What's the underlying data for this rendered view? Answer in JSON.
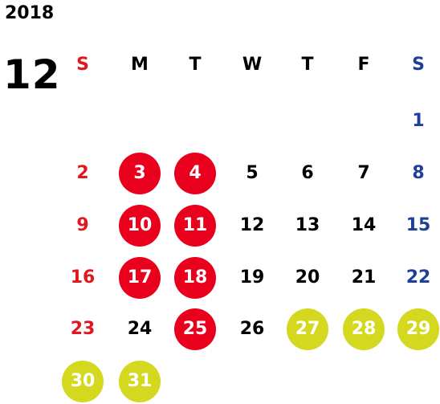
{
  "year": "2018",
  "month": "12",
  "colors": {
    "sunday": "#e3161f",
    "saturday": "#1f3f9a",
    "weekday": "#000000",
    "holiday_circle": "#e8001c",
    "event_circle": "#d4d81f",
    "circle_text": "#ffffff"
  },
  "weekdays": [
    {
      "label": "S",
      "kind": "sunday"
    },
    {
      "label": "M",
      "kind": "weekday"
    },
    {
      "label": "T",
      "kind": "weekday"
    },
    {
      "label": "W",
      "kind": "weekday"
    },
    {
      "label": "T",
      "kind": "weekday"
    },
    {
      "label": "F",
      "kind": "weekday"
    },
    {
      "label": "S",
      "kind": "saturday"
    }
  ],
  "weeks": [
    [
      null,
      null,
      null,
      null,
      null,
      null,
      {
        "day": "1"
      }
    ],
    [
      {
        "day": "2"
      },
      {
        "day": "3",
        "mark": "holiday"
      },
      {
        "day": "4",
        "mark": "holiday"
      },
      {
        "day": "5"
      },
      {
        "day": "6"
      },
      {
        "day": "7"
      },
      {
        "day": "8"
      }
    ],
    [
      {
        "day": "9"
      },
      {
        "day": "10",
        "mark": "holiday"
      },
      {
        "day": "11",
        "mark": "holiday"
      },
      {
        "day": "12"
      },
      {
        "day": "13"
      },
      {
        "day": "14"
      },
      {
        "day": "15"
      }
    ],
    [
      {
        "day": "16"
      },
      {
        "day": "17",
        "mark": "holiday"
      },
      {
        "day": "18",
        "mark": "holiday"
      },
      {
        "day": "19"
      },
      {
        "day": "20"
      },
      {
        "day": "21"
      },
      {
        "day": "22"
      }
    ],
    [
      {
        "day": "23"
      },
      {
        "day": "24"
      },
      {
        "day": "25",
        "mark": "holiday"
      },
      {
        "day": "26"
      },
      {
        "day": "27",
        "mark": "event"
      },
      {
        "day": "28",
        "mark": "event"
      },
      {
        "day": "29",
        "mark": "event"
      }
    ],
    [
      {
        "day": "30",
        "mark": "event"
      },
      {
        "day": "31",
        "mark": "event"
      },
      null,
      null,
      null,
      null,
      null
    ]
  ]
}
